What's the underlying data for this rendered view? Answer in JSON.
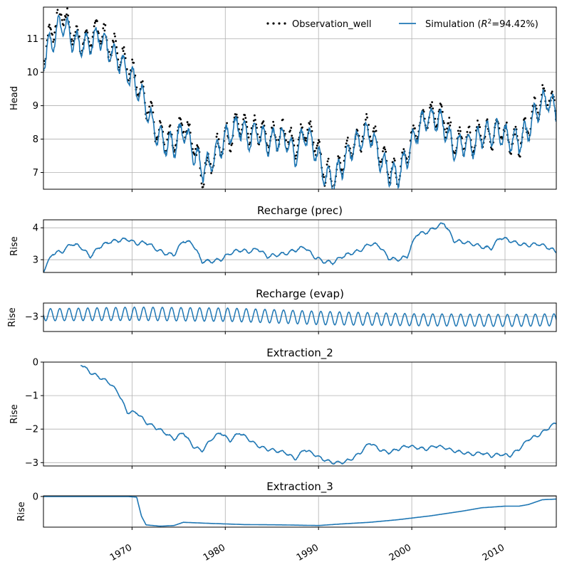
{
  "colors": {
    "simulation": "#1f77b4",
    "observation": "#000000",
    "grid": "#b0b0b0"
  },
  "x_ticks": [
    "1970",
    "1980",
    "1990",
    "2000",
    "2010"
  ],
  "chart_data": [
    {
      "type": "line",
      "id": "head",
      "title": "",
      "ylabel": "Head",
      "xlim": [
        1960.5,
        2015.5
      ],
      "ylim": [
        6.5,
        11.95
      ],
      "yticks": [
        7,
        8,
        9,
        10,
        11
      ],
      "grid": true,
      "legend": "top-right",
      "series": [
        {
          "name": "Observation_well",
          "style": "dots",
          "color": "#000000",
          "x": [
            1960.5,
            1961.5,
            1962.5,
            1963.5,
            1964.5,
            1965.5,
            1966.5,
            1967.5,
            1968.5,
            1969.5,
            1970.5,
            1971.5,
            1972.5,
            1973.5,
            1974.5,
            1975.5,
            1976.5,
            1977.5,
            1978.5,
            1979.5,
            1980.5,
            1981.5,
            1982.5,
            1983.5,
            1984.5,
            1985.5,
            1986.5,
            1987.5,
            1988.5,
            1989.5,
            1990.5,
            1991.5,
            1992.5,
            1993.5,
            1994.5,
            1995.5,
            1996.5,
            1997.5,
            1998.5,
            1999.5,
            2000.5,
            2001.5,
            2002.5,
            2003.5,
            2004.5,
            2005.5,
            2006.5,
            2007.5,
            2008.5,
            2009.5,
            2010.5,
            2011.5,
            2012.5,
            2013.5,
            2014.5,
            2015.5
          ],
          "y": [
            10.5,
            11.3,
            11.8,
            11.2,
            10.9,
            11.0,
            11.3,
            10.8,
            10.6,
            10.2,
            9.7,
            9.1,
            8.3,
            8.0,
            7.9,
            8.5,
            7.9,
            7.0,
            7.3,
            7.9,
            8.1,
            8.5,
            8.2,
            8.3,
            8.0,
            8.1,
            8.2,
            7.7,
            8.3,
            8.0,
            7.1,
            6.8,
            7.3,
            7.8,
            8.1,
            8.4,
            7.6,
            7.1,
            6.9,
            7.6,
            8.3,
            8.7,
            8.8,
            8.6,
            7.8,
            8.0,
            7.9,
            8.2,
            8.1,
            8.3,
            8.0,
            7.9,
            8.4,
            9.0,
            9.3,
            8.9
          ]
        },
        {
          "name": "Simulation ($R^2$=94.42%)",
          "style": "line",
          "color": "#1f77b4",
          "x": [
            1960.5,
            1961.5,
            1962.5,
            1963.5,
            1964.5,
            1965.5,
            1966.5,
            1967.5,
            1968.5,
            1969.5,
            1970.5,
            1971.5,
            1972.5,
            1973.5,
            1974.5,
            1975.5,
            1976.5,
            1977.5,
            1978.5,
            1979.5,
            1980.5,
            1981.5,
            1982.5,
            1983.5,
            1984.5,
            1985.5,
            1986.5,
            1987.5,
            1988.5,
            1989.5,
            1990.5,
            1991.5,
            1992.5,
            1993.5,
            1994.5,
            1995.5,
            1996.5,
            1997.5,
            1998.5,
            1999.5,
            2000.5,
            2001.5,
            2002.5,
            2003.5,
            2004.5,
            2005.5,
            2006.5,
            2007.5,
            2008.5,
            2009.5,
            2010.5,
            2011.5,
            2012.5,
            2013.5,
            2014.5,
            2015.5
          ],
          "y": [
            10.4,
            11.0,
            11.5,
            11.0,
            10.8,
            10.9,
            11.1,
            10.7,
            10.4,
            10.0,
            9.6,
            9.0,
            8.2,
            7.9,
            7.8,
            8.3,
            7.7,
            7.1,
            7.3,
            7.8,
            8.2,
            8.4,
            8.0,
            8.2,
            7.9,
            8.0,
            8.0,
            7.5,
            8.2,
            7.8,
            7.0,
            6.7,
            7.2,
            7.7,
            8.0,
            8.2,
            7.5,
            7.0,
            6.9,
            7.5,
            8.2,
            8.6,
            8.6,
            8.4,
            7.7,
            7.9,
            7.8,
            8.1,
            8.2,
            8.2,
            8.0,
            7.9,
            8.3,
            8.9,
            9.2,
            8.8
          ]
        }
      ]
    },
    {
      "type": "line",
      "id": "recharge_prec",
      "title": "Recharge (prec)",
      "ylabel": "Rise",
      "xlim": [
        1960.5,
        2015.5
      ],
      "ylim": [
        2.6,
        4.25
      ],
      "yticks": [
        3,
        4
      ],
      "grid": true,
      "series": [
        {
          "name": "",
          "color": "#1f77b4",
          "x": [
            1960.5,
            1961.5,
            1962.5,
            1963.5,
            1964.5,
            1965.5,
            1966.5,
            1967.5,
            1968.5,
            1969.5,
            1970.5,
            1971.5,
            1972.5,
            1973.5,
            1974.5,
            1975.5,
            1976.5,
            1977.5,
            1978.5,
            1979.5,
            1980.5,
            1981.5,
            1982.5,
            1983.5,
            1984.5,
            1985.5,
            1986.5,
            1987.5,
            1988.5,
            1989.5,
            1990.5,
            1991.5,
            1992.5,
            1993.5,
            1994.5,
            1995.5,
            1996.5,
            1997.5,
            1998.5,
            1999.5,
            2000.5,
            2001.5,
            2002.5,
            2003.5,
            2004.5,
            2005.5,
            2006.5,
            2007.5,
            2008.5,
            2009.5,
            2010.5,
            2011.5,
            2012.5,
            2013.5,
            2014.5,
            2015.5
          ],
          "y": [
            2.65,
            3.2,
            3.25,
            3.5,
            3.4,
            3.1,
            3.4,
            3.55,
            3.6,
            3.65,
            3.5,
            3.55,
            3.35,
            3.2,
            3.15,
            3.6,
            3.5,
            2.95,
            2.95,
            3.0,
            3.2,
            3.3,
            3.25,
            3.35,
            3.1,
            3.15,
            3.2,
            3.3,
            3.4,
            3.1,
            2.95,
            2.9,
            3.1,
            3.2,
            3.3,
            3.5,
            3.45,
            3.05,
            3.0,
            3.1,
            3.8,
            3.85,
            4.0,
            4.15,
            3.6,
            3.55,
            3.5,
            3.4,
            3.35,
            3.7,
            3.6,
            3.5,
            3.45,
            3.5,
            3.4,
            3.25
          ]
        }
      ]
    },
    {
      "type": "line",
      "id": "recharge_evap",
      "title": "Recharge (evap)",
      "ylabel": "Rise",
      "xlim": [
        1960.5,
        2015.5
      ],
      "ylim": [
        -3.45,
        -2.6
      ],
      "yticks": [
        -3
      ],
      "grid": true,
      "series": [
        {
          "name": "",
          "color": "#1f77b4",
          "seasonal": true,
          "x": [
            1960.5,
            1970.5,
            1980.5,
            1990.5,
            2000.5,
            2010.5,
            2015.5
          ],
          "y_mean": [
            -2.95,
            -2.92,
            -2.95,
            -3.05,
            -3.1,
            -3.12,
            -3.1
          ],
          "y_amplitude": [
            0.18,
            0.2,
            0.2,
            0.2,
            0.18,
            0.18,
            0.18
          ]
        }
      ]
    },
    {
      "type": "line",
      "id": "extraction_2",
      "title": "Extraction_2",
      "ylabel": "Rise",
      "xlim": [
        1960.5,
        2015.5
      ],
      "ylim": [
        -3.1,
        0
      ],
      "yticks": [
        0,
        -1,
        -2,
        -3
      ],
      "grid": true,
      "series": [
        {
          "name": "",
          "color": "#1f77b4",
          "x": [
            1964.5,
            1965.5,
            1966.5,
            1967.5,
            1968.5,
            1969.5,
            1970.5,
            1971.5,
            1972.5,
            1973.5,
            1974.5,
            1975.5,
            1976.5,
            1977.5,
            1978.5,
            1979.5,
            1980.5,
            1981.5,
            1982.5,
            1983.5,
            1984.5,
            1985.5,
            1986.5,
            1987.5,
            1988.5,
            1989.5,
            1990.5,
            1991.5,
            1992.5,
            1993.5,
            1994.5,
            1995.5,
            1996.5,
            1997.5,
            1998.5,
            1999.5,
            2000.5,
            2001.5,
            2002.5,
            2003.5,
            2004.5,
            2005.5,
            2006.5,
            2007.5,
            2008.5,
            2009.5,
            2010.5,
            2011.5,
            2012.5,
            2013.5,
            2014.5,
            2015.5
          ],
          "y": [
            -0.05,
            -0.3,
            -0.45,
            -0.6,
            -0.9,
            -1.5,
            -1.5,
            -1.8,
            -1.95,
            -2.1,
            -2.3,
            -2.1,
            -2.5,
            -2.65,
            -2.3,
            -2.1,
            -2.35,
            -2.1,
            -2.3,
            -2.5,
            -2.6,
            -2.65,
            -2.7,
            -2.9,
            -2.6,
            -2.75,
            -2.9,
            -3.0,
            -3.0,
            -2.9,
            -2.7,
            -2.4,
            -2.6,
            -2.7,
            -2.6,
            -2.5,
            -2.55,
            -2.6,
            -2.5,
            -2.55,
            -2.65,
            -2.7,
            -2.75,
            -2.7,
            -2.8,
            -2.75,
            -2.8,
            -2.6,
            -2.3,
            -2.2,
            -2.0,
            -1.8
          ]
        }
      ]
    },
    {
      "type": "line",
      "id": "extraction_3",
      "title": "Extraction_3",
      "ylabel": "Rise",
      "xlim": [
        1960.5,
        2015.5
      ],
      "ylim": [
        -0.95,
        0.02
      ],
      "yticks": [
        0
      ],
      "grid": true,
      "series": [
        {
          "name": "",
          "color": "#1f77b4",
          "x": [
            1960.5,
            1969.5,
            1970.5,
            1971.0,
            1971.5,
            1973.0,
            1974.5,
            1975.5,
            1978.0,
            1982.0,
            1986.0,
            1990.0,
            1992.5,
            1995.5,
            1998.5,
            2002.0,
            2005.5,
            2007.5,
            2010.0,
            2011.5,
            2012.5,
            2014.0,
            2015.5
          ],
          "y": [
            0,
            0,
            -0.02,
            -0.6,
            -0.88,
            -0.92,
            -0.9,
            -0.8,
            -0.83,
            -0.87,
            -0.88,
            -0.9,
            -0.85,
            -0.8,
            -0.72,
            -0.6,
            -0.45,
            -0.35,
            -0.3,
            -0.3,
            -0.25,
            -0.1,
            -0.08
          ]
        }
      ]
    }
  ]
}
